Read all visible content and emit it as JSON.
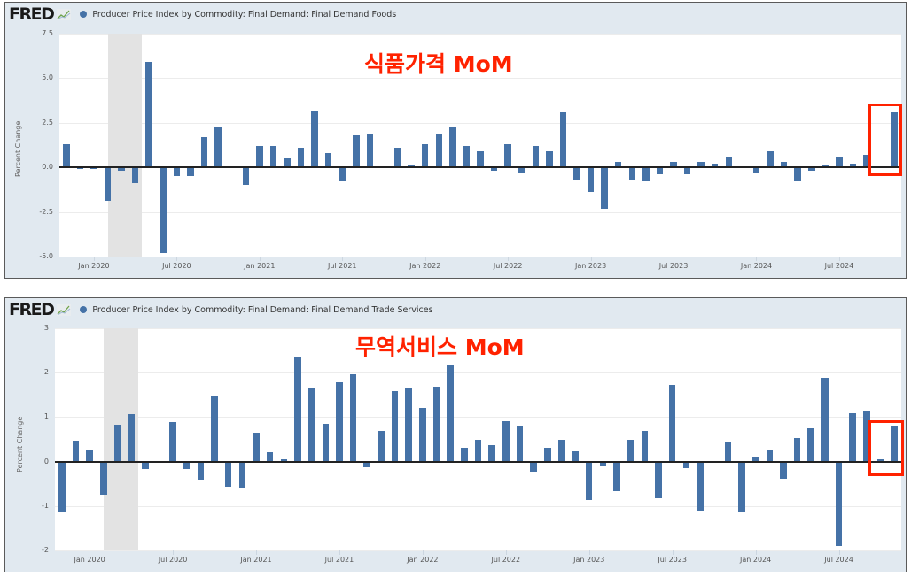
{
  "charts": [
    {
      "logo": "FRED",
      "series_title": "Producer Price Index by Commodity: Final Demand: Final Demand Foods",
      "annotation": "식품가격 MoM",
      "y_axis_title": "Percent Change",
      "y_ticks": [
        "7.5",
        "5.0",
        "2.5",
        "0.0",
        "-2.5",
        "-5.0"
      ],
      "x_ticks": [
        "Jan 2020",
        "Jul 2020",
        "Jan 2021",
        "Jul 2021",
        "Jan 2022",
        "Jul 2022",
        "Jan 2023",
        "Jul 2023",
        "Jan 2024",
        "Jul 2024"
      ]
    },
    {
      "logo": "FRED",
      "series_title": "Producer Price Index by Commodity: Final Demand: Final Demand Trade Services",
      "annotation": "무역서비스 MoM",
      "y_axis_title": "Percent Change",
      "y_ticks": [
        "3",
        "2",
        "1",
        "0",
        "-1",
        "-2"
      ],
      "x_ticks": [
        "Jan 2020",
        "Jul 2020",
        "Jan 2021",
        "Jul 2021",
        "Jan 2022",
        "Jul 2022",
        "Jan 2023",
        "Jul 2023",
        "Jan 2024",
        "Jul 2024"
      ]
    }
  ],
  "chart_data": [
    {
      "type": "bar",
      "title": "Producer Price Index by Commodity: Final Demand: Final Demand Foods",
      "annotation": "식품가격 MoM",
      "xlabel": "",
      "ylabel": "Percent Change",
      "ylim": [
        -5.0,
        7.5
      ],
      "y_ticks": [
        -5.0,
        -2.5,
        0.0,
        2.5,
        5.0,
        7.5
      ],
      "grid": true,
      "legend": "top-left",
      "series_color": "#4572a7",
      "recession_shading": [
        "Feb 2020",
        "Apr 2020"
      ],
      "highlight": "Nov 2024",
      "x_start": "Nov 2019",
      "x_end": "Nov 2024",
      "categories": [
        "Nov 2019",
        "Dec 2019",
        "Jan 2020",
        "Feb 2020",
        "Mar 2020",
        "Apr 2020",
        "May 2020",
        "Jun 2020",
        "Jul 2020",
        "Aug 2020",
        "Sep 2020",
        "Oct 2020",
        "Nov 2020",
        "Dec 2020",
        "Jan 2021",
        "Feb 2021",
        "Mar 2021",
        "Apr 2021",
        "May 2021",
        "Jun 2021",
        "Jul 2021",
        "Aug 2021",
        "Sep 2021",
        "Oct 2021",
        "Nov 2021",
        "Dec 2021",
        "Jan 2022",
        "Feb 2022",
        "Mar 2022",
        "Apr 2022",
        "May 2022",
        "Jun 2022",
        "Jul 2022",
        "Aug 2022",
        "Sep 2022",
        "Oct 2022",
        "Nov 2022",
        "Dec 2022",
        "Jan 2023",
        "Feb 2023",
        "Mar 2023",
        "Apr 2023",
        "May 2023",
        "Jun 2023",
        "Jul 2023",
        "Aug 2023",
        "Sep 2023",
        "Oct 2023",
        "Nov 2023",
        "Dec 2023",
        "Jan 2024",
        "Feb 2024",
        "Mar 2024",
        "Apr 2024",
        "May 2024",
        "Jun 2024",
        "Jul 2024",
        "Aug 2024",
        "Sep 2024",
        "Oct 2024",
        "Nov 2024"
      ],
      "values": [
        1.3,
        -0.1,
        -0.1,
        -1.9,
        -0.2,
        -0.9,
        5.9,
        -4.8,
        -0.5,
        -0.5,
        1.7,
        2.3,
        0.0,
        -1.0,
        1.2,
        1.2,
        0.5,
        1.1,
        3.2,
        0.8,
        -0.8,
        1.8,
        1.9,
        0.0,
        1.1,
        0.1,
        1.3,
        1.9,
        2.3,
        1.2,
        0.9,
        -0.2,
        1.3,
        -0.3,
        1.2,
        0.9,
        3.1,
        -0.7,
        -1.4,
        -2.3,
        0.3,
        -0.7,
        -0.8,
        -0.4,
        0.3,
        -0.4,
        0.3,
        0.2,
        0.6,
        0.0,
        -0.3,
        0.9,
        0.3,
        -0.8,
        -0.2,
        0.1,
        0.6,
        0.2,
        0.7,
        0.0,
        3.1
      ]
    },
    {
      "type": "bar",
      "title": "Producer Price Index by Commodity: Final Demand: Final Demand Trade Services",
      "annotation": "무역서비스 MoM",
      "xlabel": "",
      "ylabel": "Percent Change",
      "ylim": [
        -2,
        3
      ],
      "y_ticks": [
        -2,
        -1,
        0,
        1,
        2,
        3
      ],
      "grid": true,
      "legend": "top-left",
      "series_color": "#4572a7",
      "recession_shading": [
        "Feb 2020",
        "Apr 2020"
      ],
      "highlight": [
        "Oct 2024",
        "Nov 2024"
      ],
      "x_start": "Nov 2019",
      "x_end": "Nov 2024",
      "categories": [
        "Nov 2019",
        "Dec 2019",
        "Jan 2020",
        "Feb 2020",
        "Mar 2020",
        "Apr 2020",
        "May 2020",
        "Jun 2020",
        "Jul 2020",
        "Aug 2020",
        "Sep 2020",
        "Oct 2020",
        "Nov 2020",
        "Dec 2020",
        "Jan 2021",
        "Feb 2021",
        "Mar 2021",
        "Apr 2021",
        "May 2021",
        "Jun 2021",
        "Jul 2021",
        "Aug 2021",
        "Sep 2021",
        "Oct 2021",
        "Nov 2021",
        "Dec 2021",
        "Jan 2022",
        "Feb 2022",
        "Mar 2022",
        "Apr 2022",
        "May 2022",
        "Jun 2022",
        "Jul 2022",
        "Aug 2022",
        "Sep 2022",
        "Oct 2022",
        "Nov 2022",
        "Dec 2022",
        "Jan 2023",
        "Feb 2023",
        "Mar 2023",
        "Apr 2023",
        "May 2023",
        "Jun 2023",
        "Jul 2023",
        "Aug 2023",
        "Sep 2023",
        "Oct 2023",
        "Nov 2023",
        "Dec 2023",
        "Jan 2024",
        "Feb 2024",
        "Mar 2024",
        "Apr 2024",
        "May 2024",
        "Jun 2024",
        "Jul 2024",
        "Aug 2024",
        "Sep 2024",
        "Oct 2024",
        "Nov 2024"
      ],
      "values": [
        -1.15,
        0.48,
        0.25,
        -0.75,
        0.82,
        1.07,
        -0.16,
        0.0,
        0.88,
        -0.16,
        -0.41,
        1.46,
        -0.56,
        -0.58,
        0.64,
        0.22,
        0.06,
        2.35,
        1.66,
        0.84,
        1.79,
        1.96,
        -0.13,
        0.69,
        1.58,
        1.64,
        1.21,
        1.69,
        2.18,
        0.31,
        0.49,
        0.38,
        0.9,
        0.78,
        -0.22,
        0.31,
        0.5,
        0.23,
        -0.87,
        -0.1,
        -0.67,
        0.49,
        0.68,
        -0.82,
        1.73,
        -0.14,
        -1.1,
        0.0,
        0.43,
        -1.15,
        0.12,
        0.26,
        -0.39,
        0.52,
        0.75,
        1.89,
        -1.9,
        1.09,
        1.12,
        0.06,
        0.81
      ]
    }
  ]
}
